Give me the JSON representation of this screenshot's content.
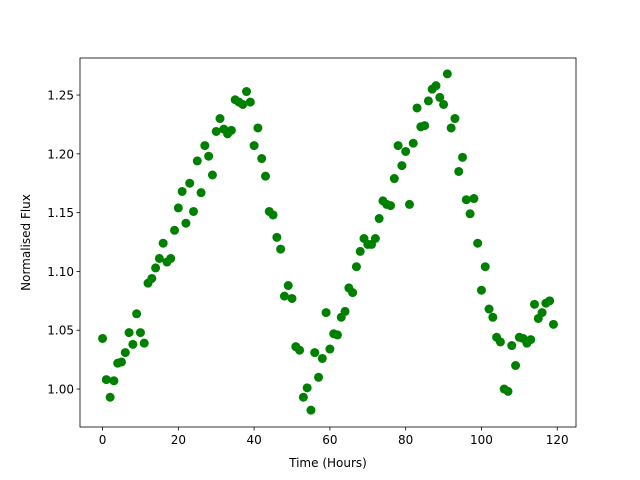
{
  "chart_data": {
    "type": "scatter",
    "xlabel": "Time (Hours)",
    "ylabel": "Normalised Flux",
    "color": "#008000",
    "x": [
      0,
      1,
      2,
      3,
      4,
      5,
      6,
      7,
      8,
      9,
      10,
      11,
      12,
      13,
      14,
      15,
      16,
      17,
      18,
      19,
      20,
      21,
      22,
      23,
      24,
      25,
      26,
      27,
      28,
      29,
      30,
      31,
      32,
      33,
      34,
      35,
      36,
      37,
      38,
      39,
      40,
      41,
      42,
      43,
      44,
      45,
      46,
      47,
      48,
      49,
      50,
      51,
      52,
      53,
      54,
      55,
      56,
      57,
      58,
      59,
      60,
      61,
      62,
      63,
      64,
      65,
      66,
      67,
      68,
      69,
      70,
      71,
      72,
      73,
      74,
      75,
      76,
      77,
      78,
      79,
      80,
      81,
      82,
      83,
      84,
      85,
      86,
      87,
      88,
      89,
      90,
      91,
      92,
      93,
      94,
      95,
      96,
      97,
      98,
      99,
      100,
      101,
      102,
      103,
      104,
      105,
      106,
      107,
      108,
      109,
      110,
      111,
      112,
      113,
      114,
      115,
      116,
      117,
      118,
      119
    ],
    "values": [
      1.043,
      1.008,
      0.993,
      1.007,
      1.022,
      1.023,
      1.031,
      1.048,
      1.038,
      1.064,
      1.048,
      1.039,
      1.09,
      1.094,
      1.103,
      1.111,
      1.124,
      1.108,
      1.111,
      1.135,
      1.154,
      1.168,
      1.141,
      1.175,
      1.151,
      1.194,
      1.167,
      1.207,
      1.198,
      1.182,
      1.219,
      1.23,
      1.221,
      1.217,
      1.22,
      1.246,
      1.244,
      1.242,
      1.253,
      1.244,
      1.207,
      1.222,
      1.196,
      1.181,
      1.151,
      1.148,
      1.129,
      1.119,
      1.079,
      1.088,
      1.077,
      1.036,
      1.033,
      0.993,
      1.001,
      0.982,
      1.031,
      1.01,
      1.026,
      1.065,
      1.034,
      1.047,
      1.046,
      1.061,
      1.066,
      1.086,
      1.082,
      1.104,
      1.117,
      1.128,
      1.123,
      1.123,
      1.128,
      1.145,
      1.16,
      1.157,
      1.156,
      1.179,
      1.207,
      1.19,
      1.202,
      1.157,
      1.209,
      1.239,
      1.223,
      1.224,
      1.245,
      1.255,
      1.258,
      1.248,
      1.242,
      1.268,
      1.222,
      1.23,
      1.185,
      1.197,
      1.161,
      1.149,
      1.162,
      1.124,
      1.084,
      1.104,
      1.068,
      1.061,
      1.044,
      1.04,
      1.0,
      0.998,
      1.037,
      1.02,
      1.044,
      1.043,
      1.039,
      1.042,
      1.072,
      1.06,
      1.065,
      1.073,
      1.075,
      1.055
    ],
    "xlim": [
      -5.95,
      124.95
    ],
    "ylim": [
      0.9677,
      1.2815
    ],
    "xticks": [
      0,
      20,
      40,
      60,
      80,
      100,
      120
    ],
    "yticks": [
      {
        "value": 1.0,
        "label": "1.00"
      },
      {
        "value": 1.05,
        "label": "1.05"
      },
      {
        "value": 1.1,
        "label": "1.10"
      },
      {
        "value": 1.15,
        "label": "1.15"
      },
      {
        "value": 1.2,
        "label": "1.20"
      },
      {
        "value": 1.25,
        "label": "1.25"
      }
    ],
    "grid": false
  }
}
